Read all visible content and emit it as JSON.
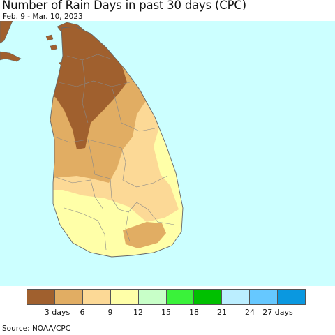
{
  "title": "Number of Rain Days in past 30 days (CPC)",
  "subtitle": "Feb. 9 - Mar. 10, 2023",
  "source": "Source: NOAA/CPC",
  "colors": {
    "ocean": "#ccffff",
    "land_outline": "#666666",
    "district_lines": "#888888"
  },
  "legend": {
    "swatches": [
      "#a0602e",
      "#e1ad63",
      "#fcd996",
      "#ffffa8",
      "#c8ffc8",
      "#3af23a",
      "#00c000",
      "#bbeeff",
      "#66c8ff",
      "#0a98e0"
    ],
    "labels": [
      "3 days",
      "6",
      "9",
      "12",
      "15",
      "18",
      "21",
      "24",
      "27 days"
    ]
  }
}
